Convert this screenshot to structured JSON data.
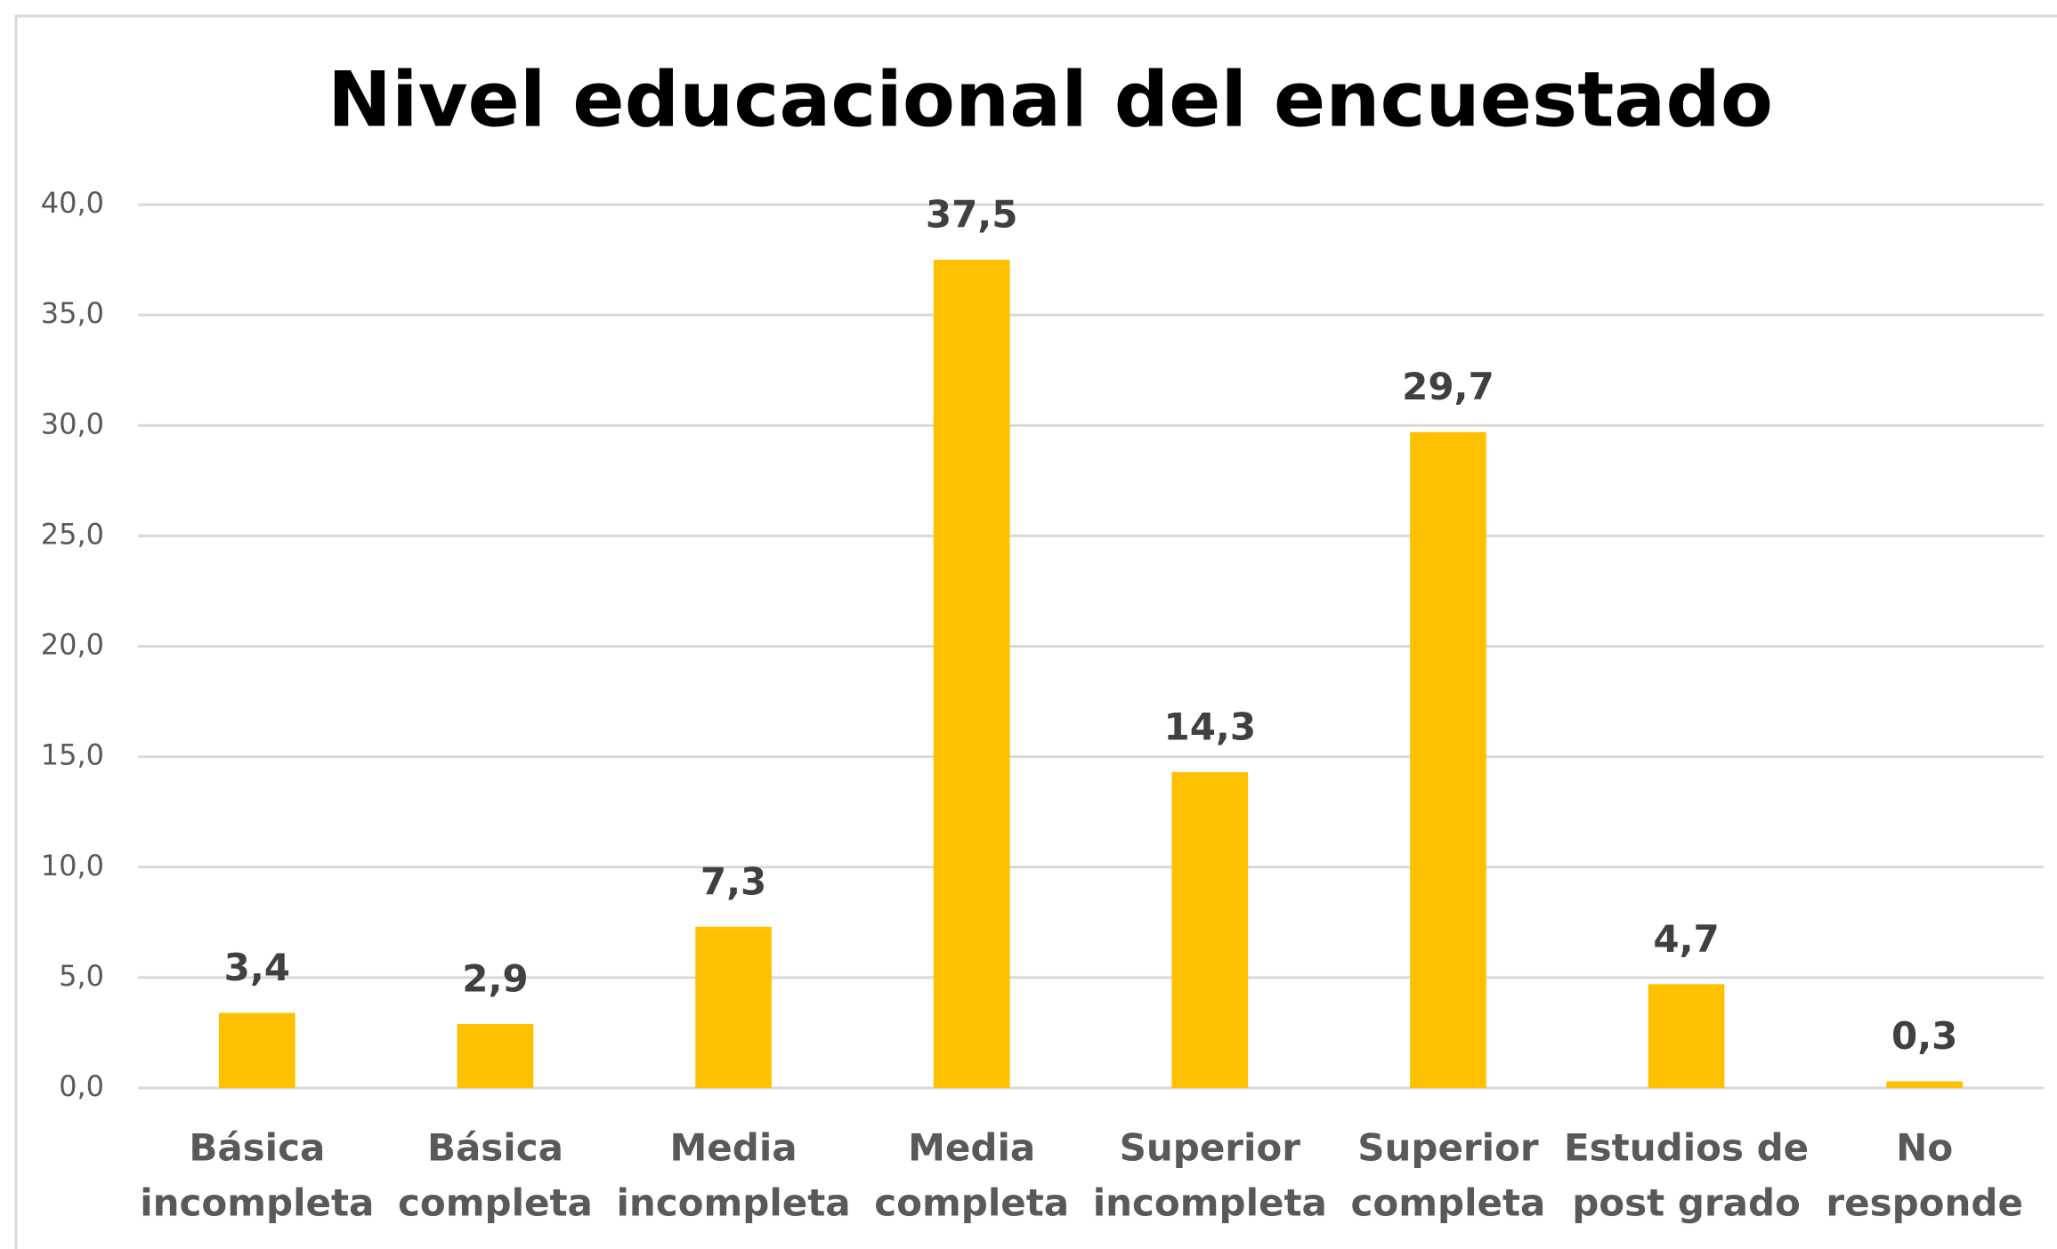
{
  "chart_data": {
    "type": "bar",
    "title": "Nivel educacional del encuestado",
    "categories": [
      [
        "Básica",
        "incompleta"
      ],
      [
        "Básica",
        "completa"
      ],
      [
        "Media",
        "incompleta"
      ],
      [
        "Media",
        "completa"
      ],
      [
        "Superior",
        "incompleta"
      ],
      [
        "Superior",
        "completa"
      ],
      [
        "Estudios de",
        "post grado"
      ],
      [
        "No",
        "responde"
      ]
    ],
    "values": [
      3.4,
      2.9,
      7.3,
      37.5,
      14.3,
      29.7,
      4.7,
      0.3
    ],
    "value_labels": [
      "3,4",
      "2,9",
      "7,3",
      "37,5",
      "14,3",
      "29,7",
      "4,7",
      "0,3"
    ],
    "color": "#ffc000",
    "ylim": [
      0,
      40
    ],
    "yticks": [
      {
        "value": 0,
        "label": "0,0"
      },
      {
        "value": 5,
        "label": "5,0"
      },
      {
        "value": 10,
        "label": "10,0"
      },
      {
        "value": 15,
        "label": "15,0"
      },
      {
        "value": 20,
        "label": "20,0"
      },
      {
        "value": 25,
        "label": "25,0"
      },
      {
        "value": 30,
        "label": "30,0"
      },
      {
        "value": 35,
        "label": "35,0"
      },
      {
        "value": 40,
        "label": "40,0"
      }
    ],
    "grid": true
  }
}
